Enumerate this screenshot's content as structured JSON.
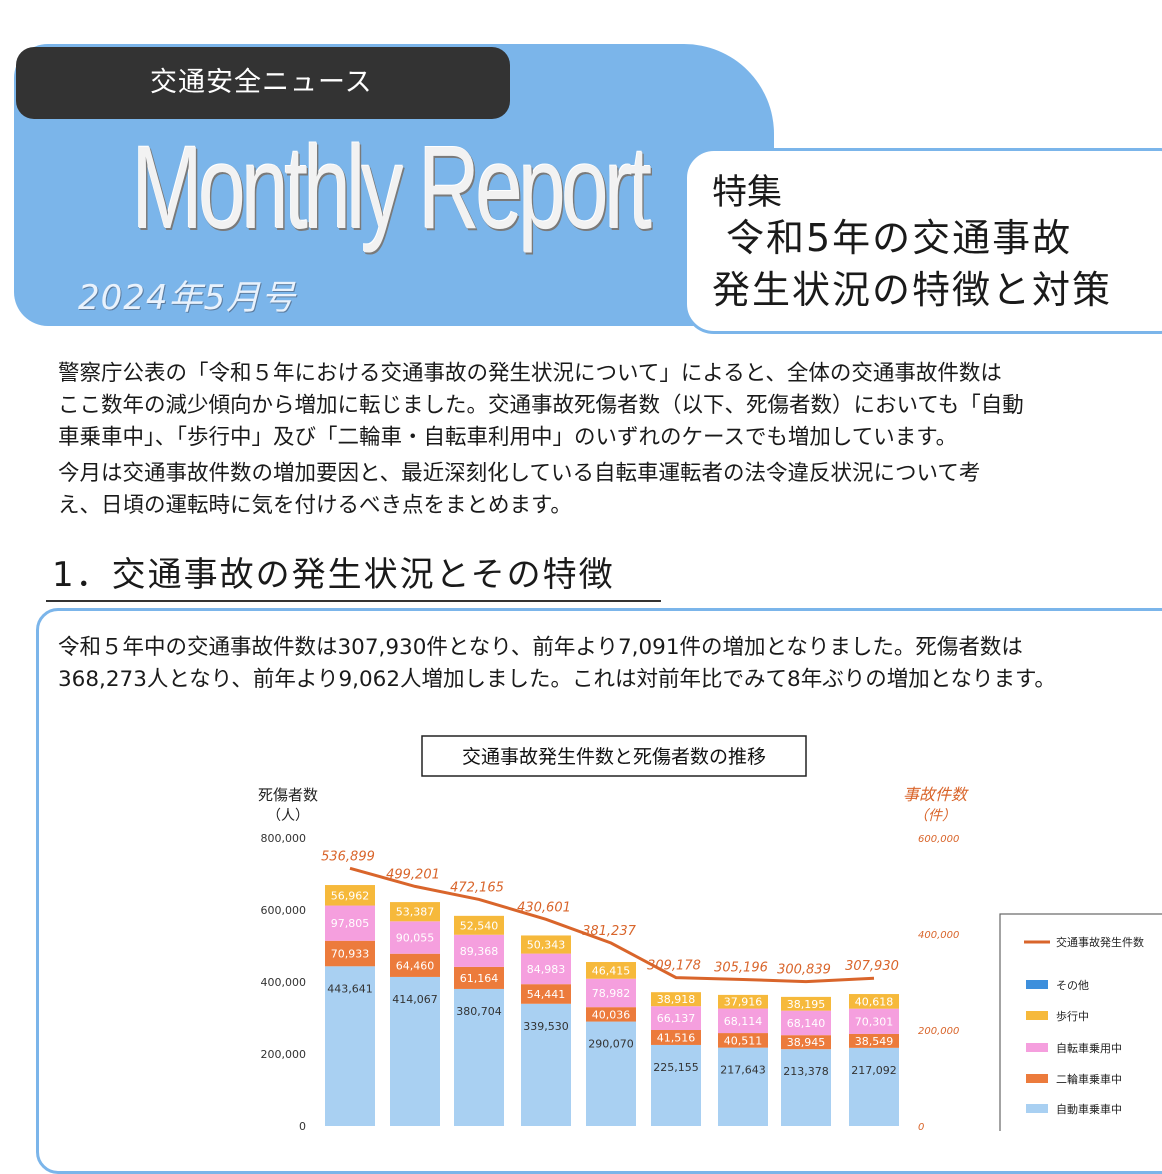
{
  "header": {
    "tag": "交通安全ニュース",
    "masthead": "Monthly Report",
    "issue": "2024年5月号"
  },
  "feature": {
    "label": "特集",
    "title_line1": "令和5年の交通事故",
    "title_line2": "発生状況の特徴と対策"
  },
  "intro": {
    "p1_line1": "警察庁公表の「令和５年における交通事故の発生状況について」によると、全体の交通事故件数は",
    "p1_line2": "ここ数年の減少傾向から増加に転じました。交通事故死傷者数（以下、死傷者数）においても「自動",
    "p1_line3": "車乗車中」、「歩行中」及び「二輪車・自転車利用中」のいずれのケースでも増加しています。",
    "p2_line1": "今月は交通事故件数の増加要因と、最近深刻化している自転車運転者の法令違反状況について考",
    "p2_line2": "え、日頃の運転時に気を付けるべき点をまとめます。"
  },
  "section1": {
    "title": "1．交通事故の発生状況とその特徴",
    "text_line1": "令和５年中の交通事故件数は307,930件となり、前年より7,091件の増加となりました。死傷者数は",
    "text_line2": "368,273人となり、前年より9,062人増加しました。これは対前年比でみて8年ぶりの増加となります。"
  },
  "colors": {
    "banner": "#7bb5ea",
    "auto": "#a9d0f2",
    "moto": "#ec7b3c",
    "bike": "#f59fde",
    "walk": "#f6b93b",
    "line": "#d9652b"
  },
  "chart_data": {
    "type": "bar",
    "title": "交通事故発生件数と死傷者数の推移",
    "y_left_label": "死傷者数",
    "y_left_unit": "（人）",
    "y_right_label": "事故件数",
    "y_right_unit": "（件）",
    "y_left_ticks": [
      "0",
      "200,000",
      "400,000",
      "600,000",
      "800,000"
    ],
    "y_right_ticks": [
      "0",
      "200,000",
      "400,000",
      "600,000"
    ],
    "ylim_left": [
      0,
      800000
    ],
    "ylim_right": [
      0,
      600000
    ],
    "series": [
      {
        "name": "自動車乗車中",
        "color": "#a9d0f2",
        "values": [
          443641,
          414067,
          380704,
          339530,
          290070,
          225155,
          217643,
          213378,
          217092
        ]
      },
      {
        "name": "二輪車乗車中",
        "color": "#ec7b3c",
        "values": [
          70933,
          64460,
          61164,
          54441,
          40036,
          41516,
          40511,
          38945,
          38549
        ]
      },
      {
        "name": "自転車乗用中",
        "color": "#f59fde",
        "values": [
          97805,
          90055,
          89368,
          84983,
          78982,
          66137,
          68114,
          68140,
          70301
        ]
      },
      {
        "name": "歩行中",
        "color": "#f6b93b",
        "values": [
          56962,
          53387,
          52540,
          50343,
          46415,
          38918,
          37916,
          38195,
          40618
        ]
      },
      {
        "name": "その他",
        "color": "#3d8fdc",
        "values": []
      }
    ],
    "line_series": {
      "name": "交通事故発生件数",
      "color": "#d9652b",
      "values": [
        536899,
        499201,
        472165,
        430601,
        381237,
        309178,
        305196,
        300839,
        307930
      ]
    },
    "legend": [
      "交通事故発生件数",
      "その他",
      "歩行中",
      "自転車乗用中",
      "二輪車乗車中",
      "自動車乗車中"
    ],
    "legend_position": "right"
  }
}
